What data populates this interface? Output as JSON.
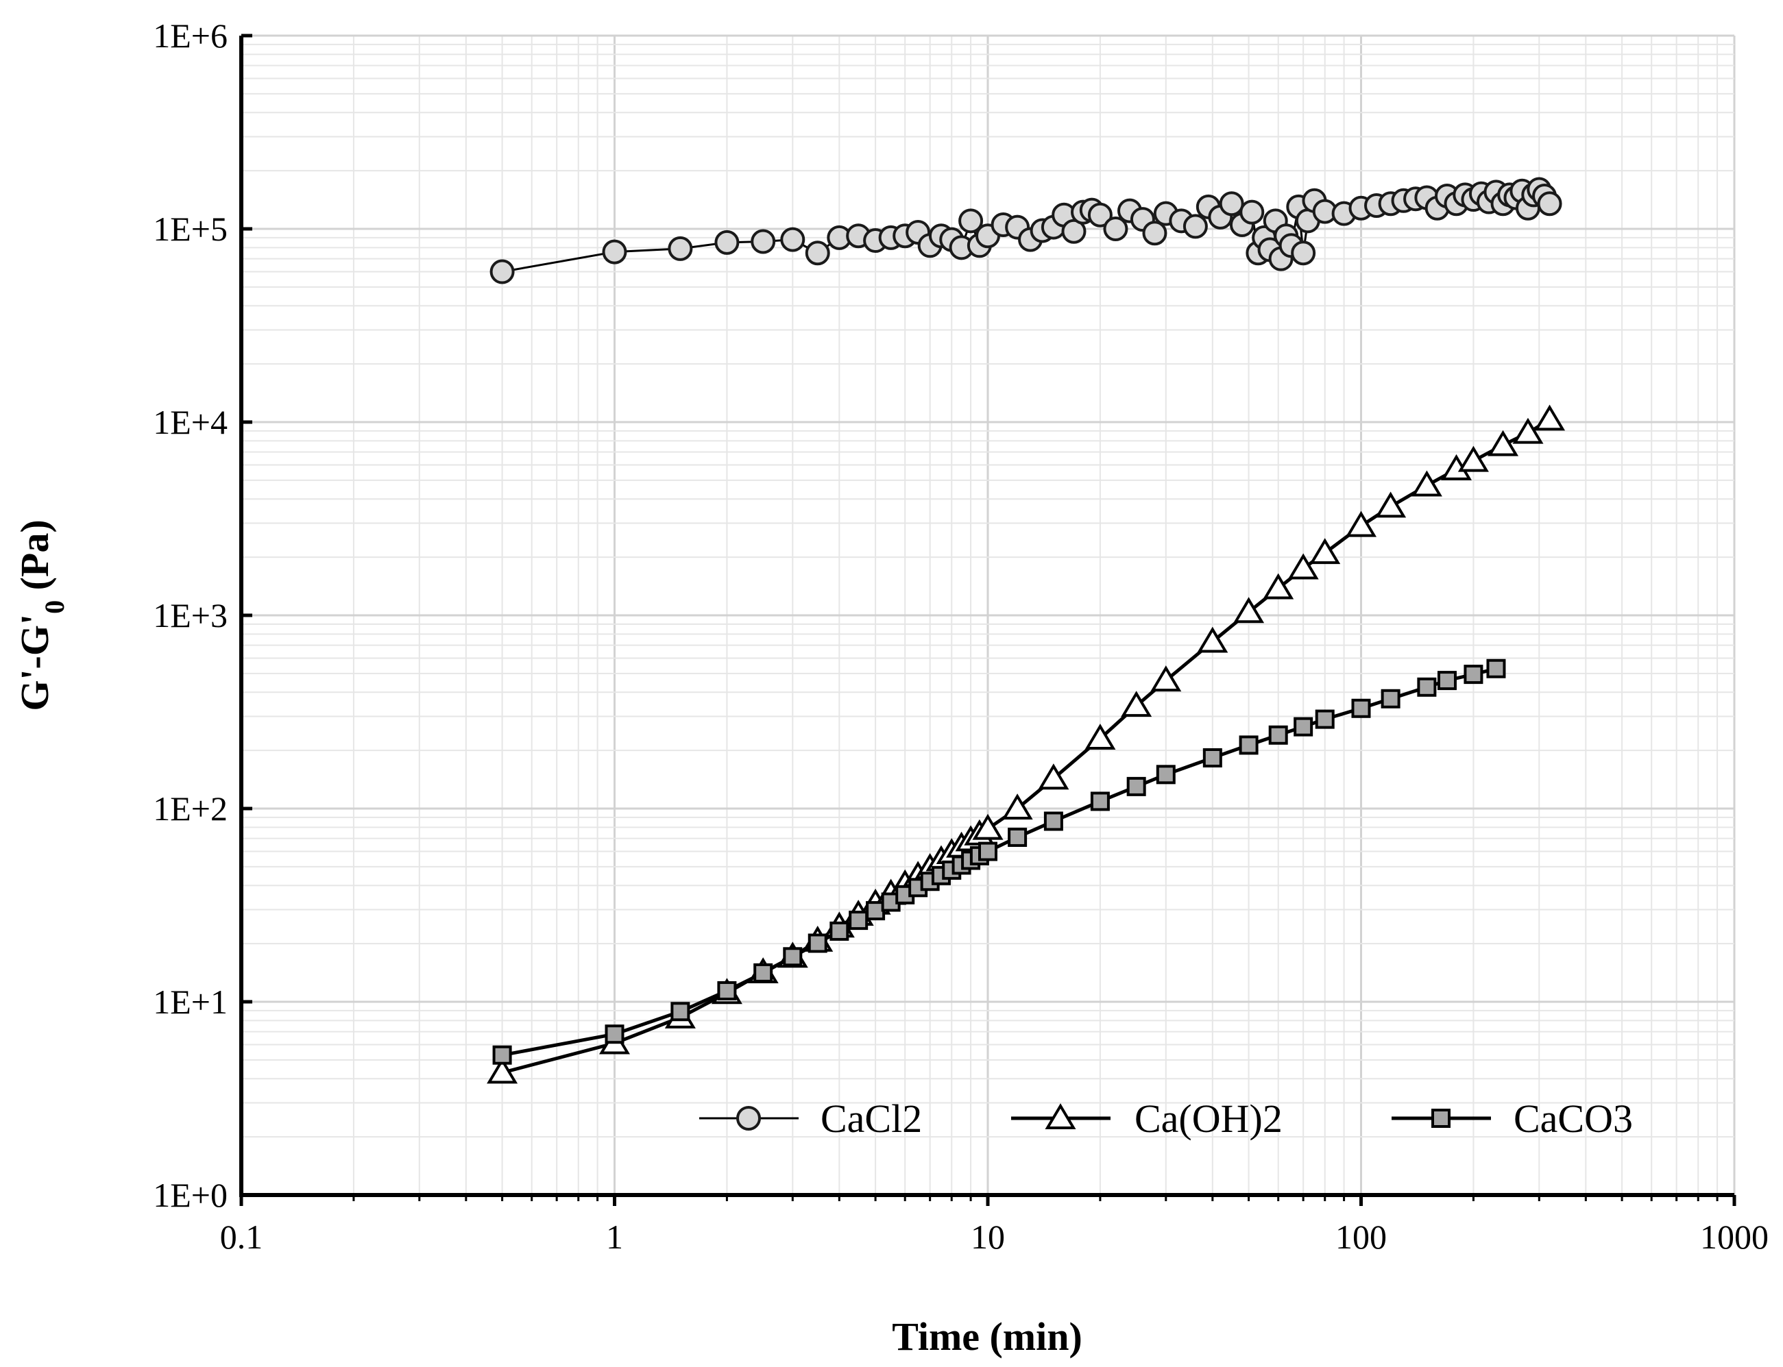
{
  "chart_data": {
    "type": "scatter",
    "title": "",
    "xlabel": "Time (min)",
    "ylabel_main": "G'-G'",
    "ylabel_sub": "0",
    "ylabel_unit": " (Pa)",
    "x_scale": "log",
    "y_scale": "log",
    "xlim": [
      0.1,
      1000
    ],
    "ylim": [
      1,
      1000000
    ],
    "x_ticks": [
      0.1,
      1,
      10,
      100,
      1000
    ],
    "x_tick_labels": [
      "0.1",
      "1",
      "10",
      "100",
      "1000"
    ],
    "y_ticks": [
      1,
      10,
      100,
      1000,
      10000,
      100000,
      1000000
    ],
    "y_tick_labels": [
      "1E+0",
      "1E+1",
      "1E+2",
      "1E+3",
      "1E+4",
      "1E+5",
      "1E+6"
    ],
    "grid": true,
    "legend_position": "bottom-right",
    "series": [
      {
        "name": "CaCl2",
        "marker": "circle",
        "points": [
          [
            0.5,
            60000
          ],
          [
            1,
            76000
          ],
          [
            1.5,
            79000
          ],
          [
            2,
            85000
          ],
          [
            2.5,
            86000
          ],
          [
            3,
            88000
          ],
          [
            3.5,
            75000
          ],
          [
            4,
            90000
          ],
          [
            4.5,
            92000
          ],
          [
            5,
            87000
          ],
          [
            5.5,
            90000
          ],
          [
            6,
            92000
          ],
          [
            6.5,
            96000
          ],
          [
            7,
            82000
          ],
          [
            7.5,
            92000
          ],
          [
            8,
            88000
          ],
          [
            8.5,
            80000
          ],
          [
            9,
            110000
          ],
          [
            9.5,
            82000
          ],
          [
            10,
            92000
          ],
          [
            11,
            105000
          ],
          [
            12,
            102000
          ],
          [
            13,
            88000
          ],
          [
            14,
            98000
          ],
          [
            15,
            102000
          ],
          [
            16,
            118000
          ],
          [
            17,
            97000
          ],
          [
            18,
            122000
          ],
          [
            19,
            125000
          ],
          [
            20,
            118000
          ],
          [
            22,
            100000
          ],
          [
            24,
            124000
          ],
          [
            26,
            112000
          ],
          [
            28,
            95000
          ],
          [
            30,
            120000
          ],
          [
            33,
            110000
          ],
          [
            36,
            103000
          ],
          [
            39,
            130000
          ],
          [
            42,
            115000
          ],
          [
            45,
            135000
          ],
          [
            48,
            105000
          ],
          [
            51,
            122000
          ],
          [
            53,
            75000
          ],
          [
            55,
            90000
          ],
          [
            57,
            78000
          ],
          [
            59,
            110000
          ],
          [
            61,
            70000
          ],
          [
            63,
            92000
          ],
          [
            65,
            82000
          ],
          [
            68,
            130000
          ],
          [
            70,
            75000
          ],
          [
            72,
            110000
          ],
          [
            75,
            140000
          ],
          [
            80,
            123000
          ],
          [
            90,
            120000
          ],
          [
            100,
            128000
          ],
          [
            110,
            132000
          ],
          [
            120,
            135000
          ],
          [
            130,
            140000
          ],
          [
            140,
            143000
          ],
          [
            150,
            145000
          ],
          [
            160,
            128000
          ],
          [
            170,
            148000
          ],
          [
            180,
            135000
          ],
          [
            190,
            150000
          ],
          [
            200,
            142000
          ],
          [
            210,
            152000
          ],
          [
            220,
            138000
          ],
          [
            230,
            155000
          ],
          [
            240,
            135000
          ],
          [
            250,
            150000
          ],
          [
            260,
            145000
          ],
          [
            270,
            157000
          ],
          [
            280,
            128000
          ],
          [
            290,
            150000
          ],
          [
            300,
            160000
          ],
          [
            310,
            148000
          ],
          [
            320,
            135000
          ]
        ]
      },
      {
        "name": "Ca(OH)2",
        "marker": "triangle",
        "points": [
          [
            0.5,
            4.3
          ],
          [
            1,
            6.1
          ],
          [
            1.5,
            8.3
          ],
          [
            2,
            11.1
          ],
          [
            2.5,
            14.2
          ],
          [
            3,
            17.1
          ],
          [
            3.5,
            20.7
          ],
          [
            4,
            24.5
          ],
          [
            4.5,
            28.2
          ],
          [
            5,
            32.2
          ],
          [
            5.5,
            36.2
          ],
          [
            6,
            40.5
          ],
          [
            6.5,
            44.8
          ],
          [
            7,
            49.2
          ],
          [
            7.5,
            54
          ],
          [
            8,
            58.8
          ],
          [
            8.5,
            63.5
          ],
          [
            9,
            68.5
          ],
          [
            9.5,
            73.5
          ],
          [
            10,
            78.5
          ],
          [
            12,
            100
          ],
          [
            15,
            143
          ],
          [
            20,
            230
          ],
          [
            25,
            340
          ],
          [
            30,
            460
          ],
          [
            40,
            730
          ],
          [
            50,
            1040
          ],
          [
            60,
            1380
          ],
          [
            70,
            1750
          ],
          [
            80,
            2100
          ],
          [
            100,
            2900
          ],
          [
            120,
            3650
          ],
          [
            150,
            4700
          ],
          [
            180,
            5700
          ],
          [
            200,
            6300
          ],
          [
            240,
            7600
          ],
          [
            280,
            8800
          ],
          [
            320,
            10300
          ]
        ]
      },
      {
        "name": "CaCO3",
        "marker": "square",
        "points": [
          [
            0.5,
            5.3
          ],
          [
            1,
            6.8
          ],
          [
            1.5,
            8.9
          ],
          [
            2,
            11.4
          ],
          [
            2.5,
            14.1
          ],
          [
            3,
            17.1
          ],
          [
            3.5,
            20.1
          ],
          [
            4,
            23.2
          ],
          [
            4.5,
            26.4
          ],
          [
            5,
            29.6
          ],
          [
            5.5,
            32.8
          ],
          [
            6,
            35.8
          ],
          [
            6.5,
            39
          ],
          [
            7,
            42
          ],
          [
            7.5,
            45
          ],
          [
            8,
            48
          ],
          [
            8.5,
            51
          ],
          [
            9,
            54
          ],
          [
            9.5,
            57
          ],
          [
            10,
            60
          ],
          [
            12,
            71
          ],
          [
            15,
            86
          ],
          [
            20,
            109
          ],
          [
            25,
            130
          ],
          [
            30,
            150
          ],
          [
            40,
            183
          ],
          [
            50,
            213
          ],
          [
            60,
            240
          ],
          [
            70,
            265
          ],
          [
            80,
            290
          ],
          [
            100,
            330
          ],
          [
            120,
            370
          ],
          [
            150,
            425
          ],
          [
            170,
            460
          ],
          [
            200,
            495
          ],
          [
            230,
            530
          ]
        ]
      }
    ]
  }
}
